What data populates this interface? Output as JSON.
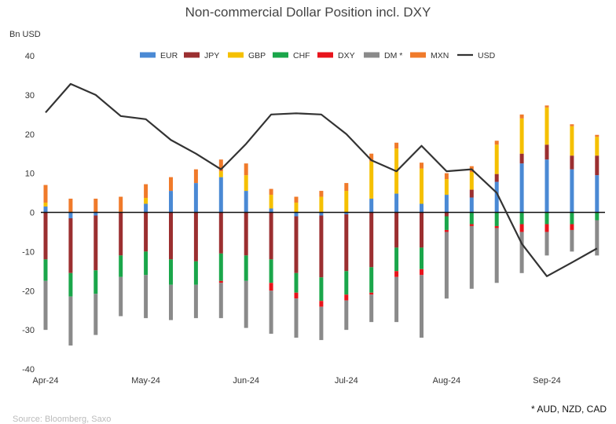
{
  "chart_data": {
    "type": "bar",
    "title": "Non-commercial Dollar Position incl. DXY",
    "ylabel": "Bn USD",
    "ylim": [
      -40,
      40
    ],
    "yticks": [
      40,
      30,
      20,
      10,
      0,
      -10,
      -20,
      -30,
      -40
    ],
    "x_tick_labels": [
      "Apr-24",
      "May-24",
      "Jun-24",
      "Jul-24",
      "Aug-24",
      "Sep-24"
    ],
    "x_tick_at_bar": [
      0,
      4,
      8,
      12,
      16,
      20
    ],
    "footnote": "* AUD, NZD, CAD",
    "source": "Source: Bloomberg, Saxo",
    "colors": {
      "EUR": "#4a89d4",
      "JPY": "#9b2f30",
      "GBP": "#f5c000",
      "CHF": "#1aa64a",
      "DXY": "#e8141c",
      "DM *": "#8a8a8a",
      "MXN": "#f07a2a",
      "USD": "#333333"
    },
    "series": [
      {
        "name": "EUR",
        "values": [
          1.5,
          -1.5,
          -0.8,
          0.0,
          2.2,
          5.5,
          7.5,
          9.0,
          5.5,
          1.0,
          -1.0,
          -0.8,
          -0.5,
          3.5,
          4.8,
          2.2,
          4.5,
          3.8,
          7.8,
          12.5,
          13.5,
          11.0,
          9.5
        ]
      },
      {
        "name": "JPY",
        "values": [
          -12.0,
          -14.0,
          -14.0,
          -11.0,
          -10.0,
          -12.0,
          -12.5,
          -10.5,
          -11.0,
          -12.0,
          -14.5,
          -15.8,
          -14.5,
          -14.0,
          -9.0,
          -9.0,
          -1.0,
          2.0,
          2.0,
          2.5,
          3.8,
          3.5,
          5.0
        ]
      },
      {
        "name": "GBP",
        "values": [
          1.0,
          0.0,
          0.0,
          0.0,
          1.5,
          0.0,
          0.0,
          1.5,
          4.0,
          3.5,
          2.5,
          4.0,
          5.5,
          9.5,
          11.5,
          9.0,
          4.0,
          4.5,
          7.5,
          9.0,
          9.5,
          7.5,
          4.8
        ]
      },
      {
        "name": "CHF",
        "values": [
          -5.5,
          -6.0,
          -6.0,
          -5.5,
          -6.0,
          -6.5,
          -6.0,
          -7.0,
          -6.5,
          -6.0,
          -5.0,
          -6.0,
          -6.0,
          -6.5,
          -6.0,
          -5.5,
          -3.5,
          -3.0,
          -3.5,
          -3.0,
          -3.0,
          -3.0,
          -2.0
        ]
      },
      {
        "name": "DXY",
        "values": [
          0.0,
          0.0,
          0.0,
          0.0,
          0.0,
          0.0,
          0.0,
          -0.5,
          0.0,
          -2.0,
          -1.5,
          -1.5,
          -1.5,
          -0.5,
          -1.5,
          -1.5,
          -0.5,
          -0.5,
          -0.5,
          -2.0,
          -2.0,
          -1.5,
          0.0
        ]
      },
      {
        "name": "DM *",
        "values": [
          -12.5,
          -12.5,
          -10.5,
          -10.0,
          -11.0,
          -9.0,
          -8.5,
          -9.0,
          -12.0,
          -11.0,
          -10.0,
          -8.5,
          -7.5,
          -7.0,
          -11.5,
          -16.0,
          -17.0,
          -16.0,
          -14.0,
          -10.5,
          -6.0,
          -5.5,
          -9.0
        ]
      },
      {
        "name": "MXN",
        "values": [
          4.5,
          3.5,
          3.5,
          4.0,
          3.5,
          3.5,
          3.5,
          3.0,
          3.0,
          1.5,
          1.5,
          1.5,
          2.0,
          2.0,
          1.5,
          1.5,
          1.5,
          1.5,
          1.0,
          1.0,
          0.5,
          0.5,
          0.5
        ]
      },
      {
        "name": "USD",
        "type": "line",
        "values": [
          25.5,
          32.8,
          30.0,
          24.6,
          23.8,
          18.5,
          15.0,
          11.0,
          17.5,
          25.0,
          25.3,
          25.0,
          20.0,
          13.3,
          10.5,
          17.0,
          10.5,
          11.0,
          5.0,
          -8.0,
          -16.3,
          -12.8,
          -9.2
        ]
      }
    ],
    "legend": [
      "EUR",
      "JPY",
      "GBP",
      "CHF",
      "DXY",
      "DM *",
      "MXN",
      "USD"
    ],
    "legend_position": "top"
  }
}
